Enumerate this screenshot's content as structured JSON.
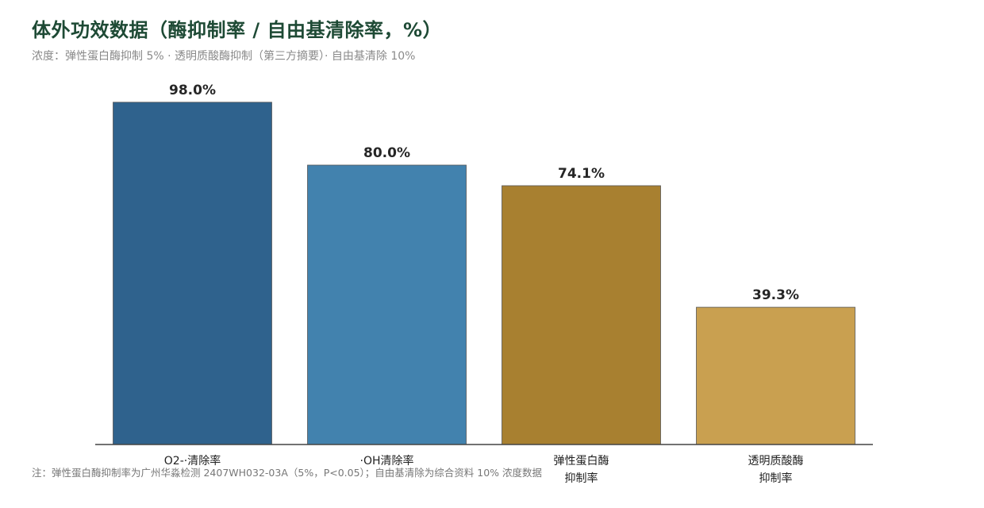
{
  "header": {
    "title": "体外功效数据（酶抑制率 / 自由基清除率，%）",
    "subtitle": "浓度：弹性蛋白酶抑制 5% · 透明质酸酶抑制（第三方摘要）· 自由基清除 10%"
  },
  "footnote": "注：弹性蛋白酶抑制率为广州华淼检测 2407WH032-03A（5%，P<0.05）；自由基清除为综合资料 10% 浓度数据",
  "chart_data": {
    "type": "bar",
    "categories": [
      [
        "O2-·清除率"
      ],
      [
        "·OH清除率"
      ],
      [
        "弹性蛋白酶",
        "抑制率"
      ],
      [
        "透明质酸酶",
        "抑制率"
      ]
    ],
    "values": [
      98.0,
      80.0,
      74.1,
      39.3
    ],
    "value_labels": [
      "98.0%",
      "80.0%",
      "74.1%",
      "39.3%"
    ],
    "colors": [
      "#2f628d",
      "#4282ae",
      "#a88030",
      "#c9a050"
    ],
    "title": "体外功效数据（酶抑制率 / 自由基清除率，%）",
    "xlabel": "",
    "ylabel": "",
    "ylim": [
      0,
      100
    ],
    "grid": false,
    "legend": "none"
  }
}
